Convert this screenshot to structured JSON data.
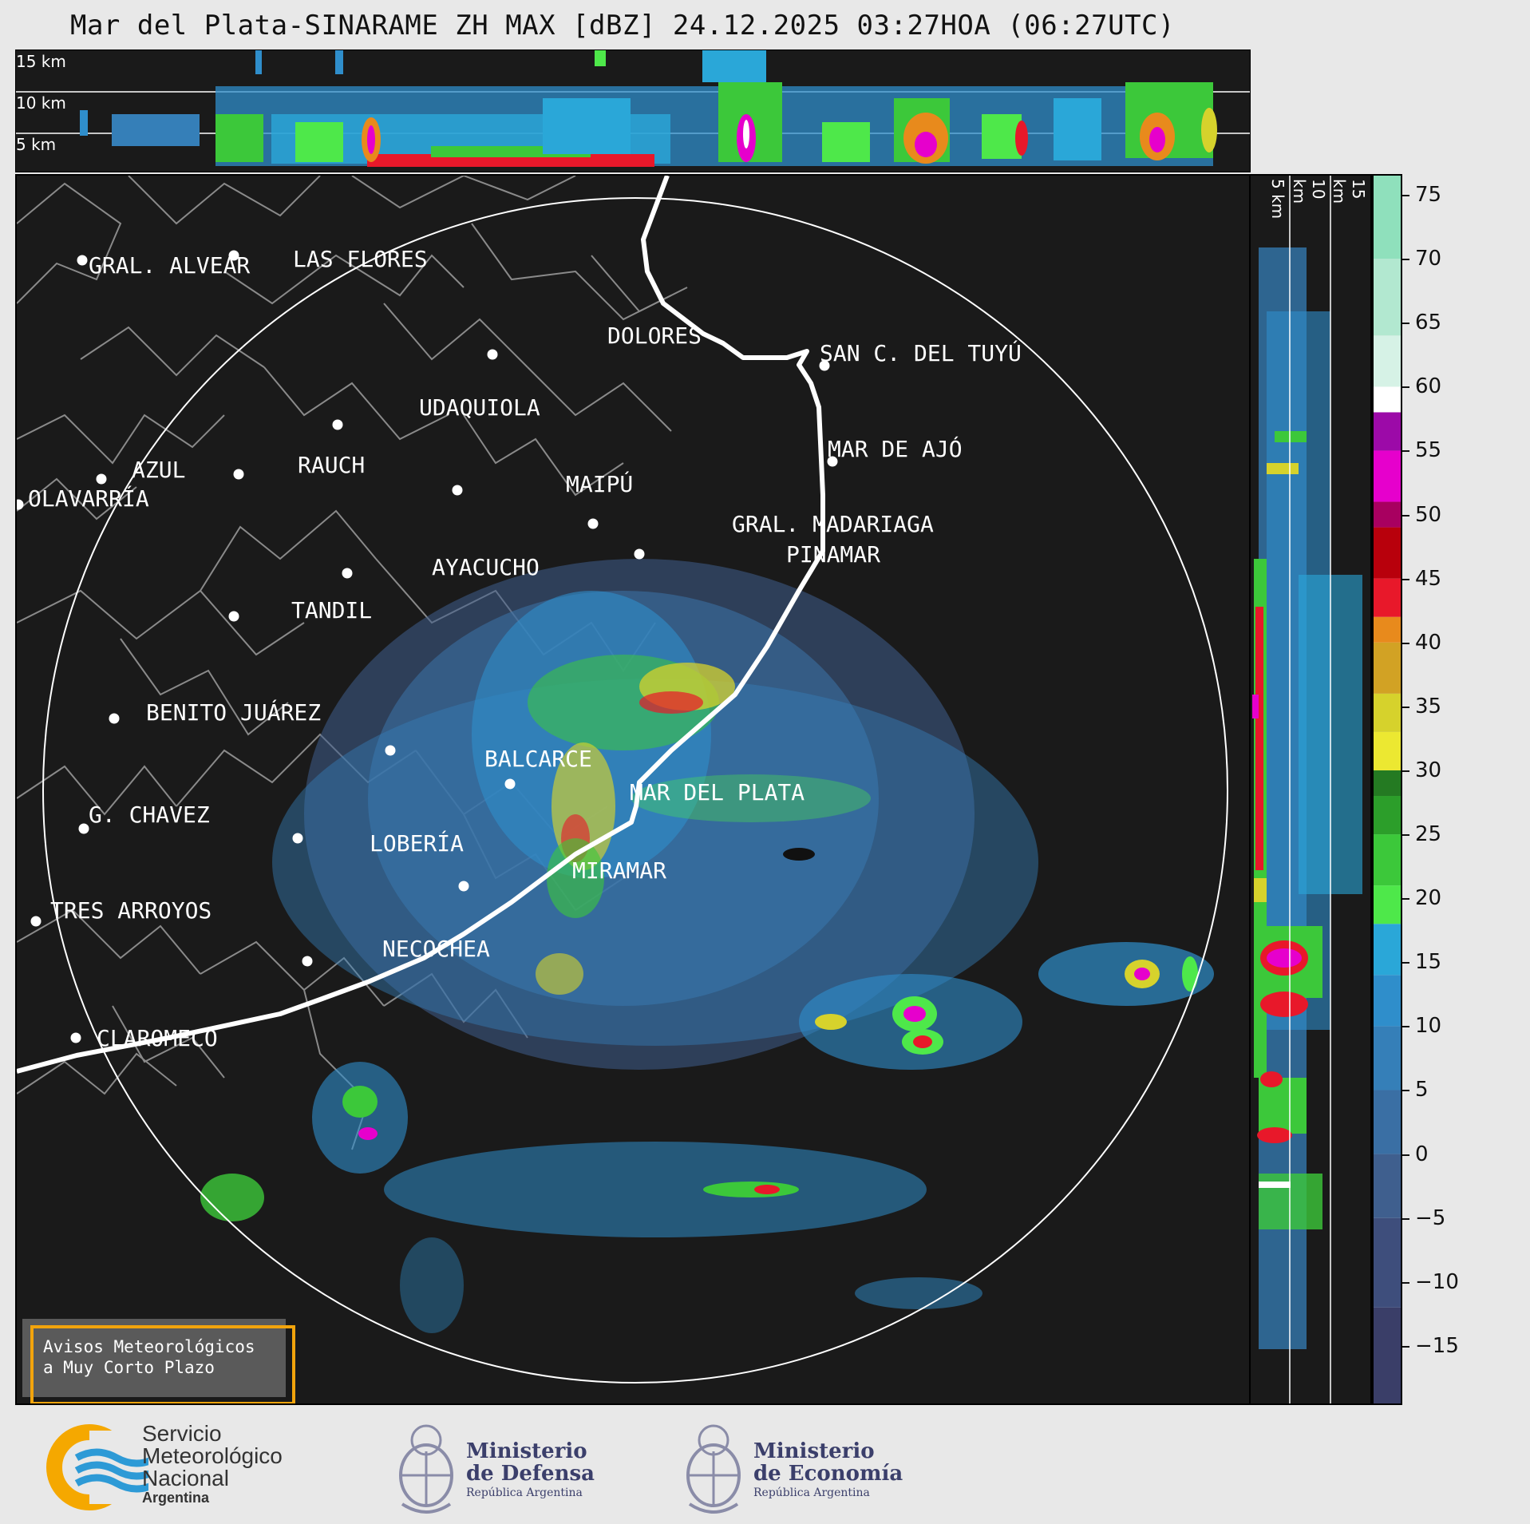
{
  "title": "Mar del Plata-SINARAME ZH MAX [dBZ] 24.12.2025 03:27HOA (06:27UTC)",
  "top_panel": {
    "altitude_labels": [
      "15 km",
      "10 km",
      "5 km"
    ]
  },
  "side_panel": {
    "altitude_labels": [
      "5 km",
      "10 km",
      "15 km"
    ]
  },
  "colorbar": {
    "ticks": [
      "75",
      "70",
      "65",
      "60",
      "55",
      "50",
      "45",
      "40",
      "35",
      "30",
      "25",
      "20",
      "15",
      "10",
      "5",
      "0",
      "−5",
      "−10",
      "−15"
    ],
    "tick_values": [
      75,
      70,
      65,
      60,
      55,
      50,
      45,
      40,
      35,
      30,
      25,
      20,
      15,
      10,
      5,
      0,
      -5,
      -10,
      -15
    ],
    "range": [
      -19.5,
      76.5
    ],
    "bands": [
      {
        "from": -19.5,
        "to": -12,
        "color": "#3a3e68"
      },
      {
        "from": -12,
        "to": -5,
        "color": "#3e4e7c"
      },
      {
        "from": -5,
        "to": 0,
        "color": "#3f5f8e"
      },
      {
        "from": 0,
        "to": 5,
        "color": "#3a6fa4"
      },
      {
        "from": 5,
        "to": 10,
        "color": "#357fb8"
      },
      {
        "from": 10,
        "to": 14,
        "color": "#2f8ecb"
      },
      {
        "from": 14,
        "to": 18,
        "color": "#2aa7d8"
      },
      {
        "from": 18,
        "to": 21,
        "color": "#4ee84a"
      },
      {
        "from": 21,
        "to": 25,
        "color": "#3cc83a"
      },
      {
        "from": 25,
        "to": 28,
        "color": "#2c9e2a"
      },
      {
        "from": 28,
        "to": 30,
        "color": "#247a22"
      },
      {
        "from": 30,
        "to": 33,
        "color": "#ece831"
      },
      {
        "from": 33,
        "to": 36,
        "color": "#d6d22c"
      },
      {
        "from": 36,
        "to": 40,
        "color": "#d2a224"
      },
      {
        "from": 40,
        "to": 42,
        "color": "#e88a1c"
      },
      {
        "from": 42,
        "to": 45,
        "color": "#e8182a"
      },
      {
        "from": 45,
        "to": 49,
        "color": "#b8000c"
      },
      {
        "from": 49,
        "to": 51,
        "color": "#a80060"
      },
      {
        "from": 51,
        "to": 55,
        "color": "#e600cc"
      },
      {
        "from": 55,
        "to": 58,
        "color": "#9c0aa8"
      },
      {
        "from": 58,
        "to": 60,
        "color": "#ffffff"
      },
      {
        "from": 60,
        "to": 64,
        "color": "#d6f2e6"
      },
      {
        "from": 64,
        "to": 70,
        "color": "#b2e8d0"
      },
      {
        "from": 70,
        "to": 76.5,
        "color": "#8fe0bc"
      }
    ]
  },
  "cities": [
    {
      "name": "GRAL. ALVEAR"
    },
    {
      "name": "LAS FLORES"
    },
    {
      "name": "DOLORES"
    },
    {
      "name": "SAN C. DEL TUYÚ"
    },
    {
      "name": "UDAQUIOLA"
    },
    {
      "name": "MAR DE AJÓ"
    },
    {
      "name": "AZUL"
    },
    {
      "name": "RAUCH"
    },
    {
      "name": "MAIPÚ"
    },
    {
      "name": "OLAVARRÍA"
    },
    {
      "name": "GRAL. MADARIAGA"
    },
    {
      "name": "PINAMAR"
    },
    {
      "name": "AYACUCHO"
    },
    {
      "name": "TANDIL"
    },
    {
      "name": "BENITO JUÁREZ"
    },
    {
      "name": "BALCARCE"
    },
    {
      "name": "MAR DEL PLATA"
    },
    {
      "name": "G. CHAVEZ"
    },
    {
      "name": "LOBERÍA"
    },
    {
      "name": "MIRAMAR"
    },
    {
      "name": "TRES ARROYOS"
    },
    {
      "name": "NECOCHEA"
    },
    {
      "name": "CLAROMECO"
    }
  ],
  "warning_box": {
    "line1": "Avisos Meteorológicos",
    "line2": "a Muy Corto Plazo"
  },
  "logos": {
    "smn": {
      "line1": "Servicio",
      "line2": "Meteorológico",
      "line3": "Nacional",
      "line4": "Argentina",
      "colors": {
        "ring": "#f5a800",
        "waves": "#2d9ad6"
      }
    },
    "defensa": {
      "line1": "Ministerio",
      "line2": "de Defensa",
      "line3": "República Argentina"
    },
    "economia": {
      "line1": "Ministerio",
      "line2": "de Economía",
      "line3": "República Argentina"
    }
  }
}
